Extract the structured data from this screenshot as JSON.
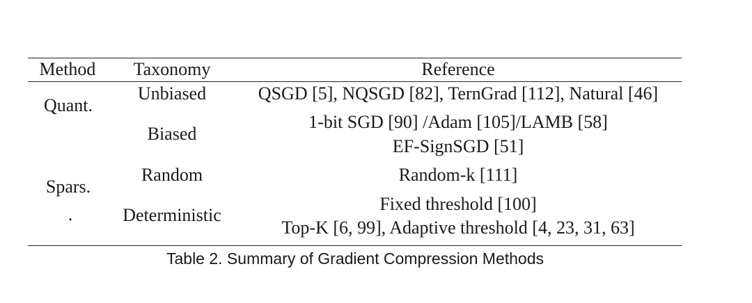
{
  "table": {
    "headers": {
      "method": "Method",
      "taxonomy": "Taxonomy",
      "reference": "Reference"
    },
    "rows": [
      {
        "method": "Quant.",
        "taxonomy": "Unbiased",
        "reference": [
          "QSGD [5], NQSGD [82], TernGrad [112], Natural [46]"
        ]
      },
      {
        "method": "",
        "taxonomy": "Biased",
        "reference": [
          "1-bit SGD [90] /Adam [105]/LAMB [58]",
          "EF-SignSGD [51]"
        ]
      },
      {
        "method": "Spars.",
        "taxonomy": "Random",
        "reference": [
          "Random-k [111]"
        ]
      },
      {
        "method": ".",
        "taxonomy": "Deterministic",
        "reference": [
          "Fixed threshold [100]",
          "Top-K [6, 99], Adaptive threshold [4, 23, 31, 63]"
        ]
      }
    ],
    "caption": "Table 2.  Summary of Gradient Compression Methods"
  }
}
